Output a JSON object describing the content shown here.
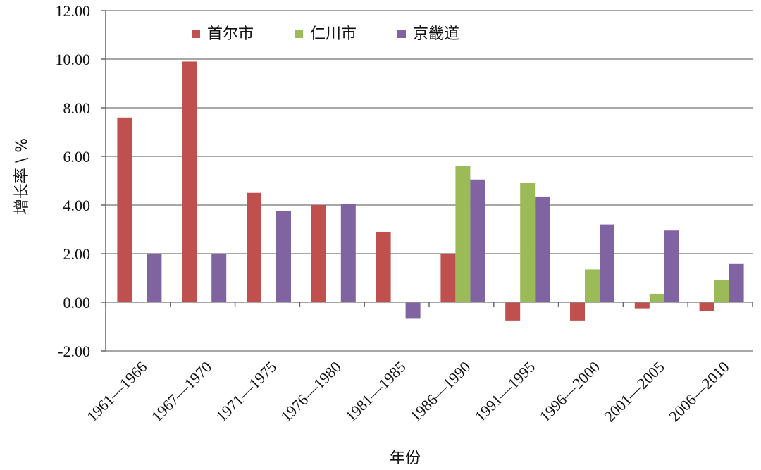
{
  "chart_data": {
    "type": "bar",
    "categories": [
      "1961—1966",
      "1967—1970",
      "1971—1975",
      "1976—1980",
      "1981—1985",
      "1986—1990",
      "1991—1995",
      "1996—2000",
      "2001—2005",
      "2006—2010"
    ],
    "series": [
      {
        "name": "首尔市",
        "color": "#C0504D",
        "values": [
          7.6,
          9.9,
          4.5,
          4.0,
          2.9,
          2.0,
          -0.75,
          -0.75,
          -0.25,
          -0.35
        ]
      },
      {
        "name": "仁川市",
        "color": "#9BBB59",
        "values": [
          null,
          null,
          null,
          null,
          null,
          5.6,
          4.9,
          1.35,
          0.35,
          0.9
        ]
      },
      {
        "name": "京畿道",
        "color": "#8064A2",
        "values": [
          2.0,
          2.0,
          3.75,
          4.05,
          -0.65,
          5.05,
          4.35,
          3.2,
          2.95,
          1.6
        ]
      }
    ],
    "yticks": [
      "12.00",
      "10.00",
      "8.00",
      "6.00",
      "4.00",
      "2.00",
      "0.00",
      "-2.00"
    ],
    "ylim": [
      -2,
      12
    ],
    "xlabel": "年份",
    "ylabel": "增长率 \\ %",
    "grid": true,
    "legend": "top"
  }
}
